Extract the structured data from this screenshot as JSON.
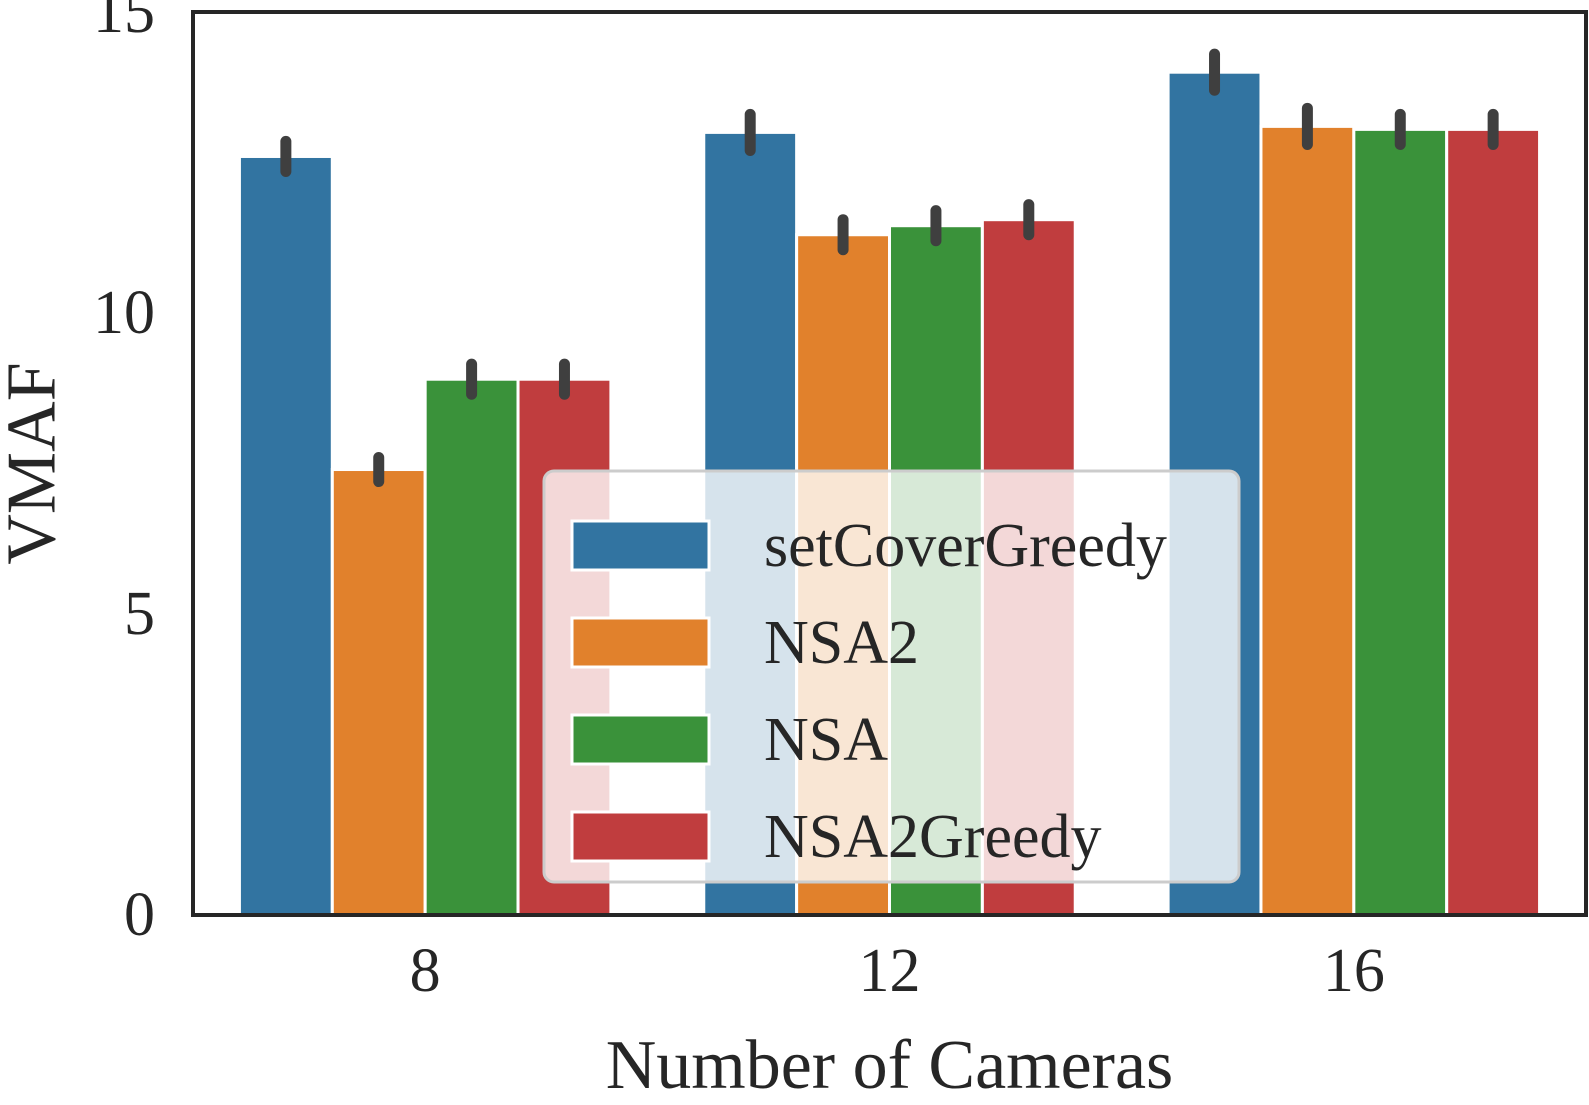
{
  "chart_data": {
    "type": "bar",
    "title": "",
    "xlabel": "Number of Cameras",
    "ylabel": "VMAF",
    "categories": [
      "8",
      "12",
      "16"
    ],
    "ylim": [
      0,
      15
    ],
    "yticks": [
      "0",
      "5",
      "10",
      "15"
    ],
    "grid": false,
    "legend_position": "center-right",
    "series": [
      {
        "name": "setCoverGreedy",
        "color": "#3274a1",
        "values": [
          12.6,
          13.0,
          14.0
        ],
        "error": [
          0.25,
          0.3,
          0.3
        ]
      },
      {
        "name": "NSA2",
        "color": "#e1812c",
        "values": [
          7.4,
          11.3,
          13.1
        ],
        "error": [
          0.2,
          0.25,
          0.3
        ]
      },
      {
        "name": "NSA",
        "color": "#3a923a",
        "values": [
          8.9,
          11.45,
          13.05
        ],
        "error": [
          0.25,
          0.25,
          0.25
        ]
      },
      {
        "name": "NSA2Greedy",
        "color": "#c03d3e",
        "values": [
          8.9,
          11.55,
          13.05
        ],
        "error": [
          0.25,
          0.25,
          0.25
        ]
      }
    ]
  }
}
